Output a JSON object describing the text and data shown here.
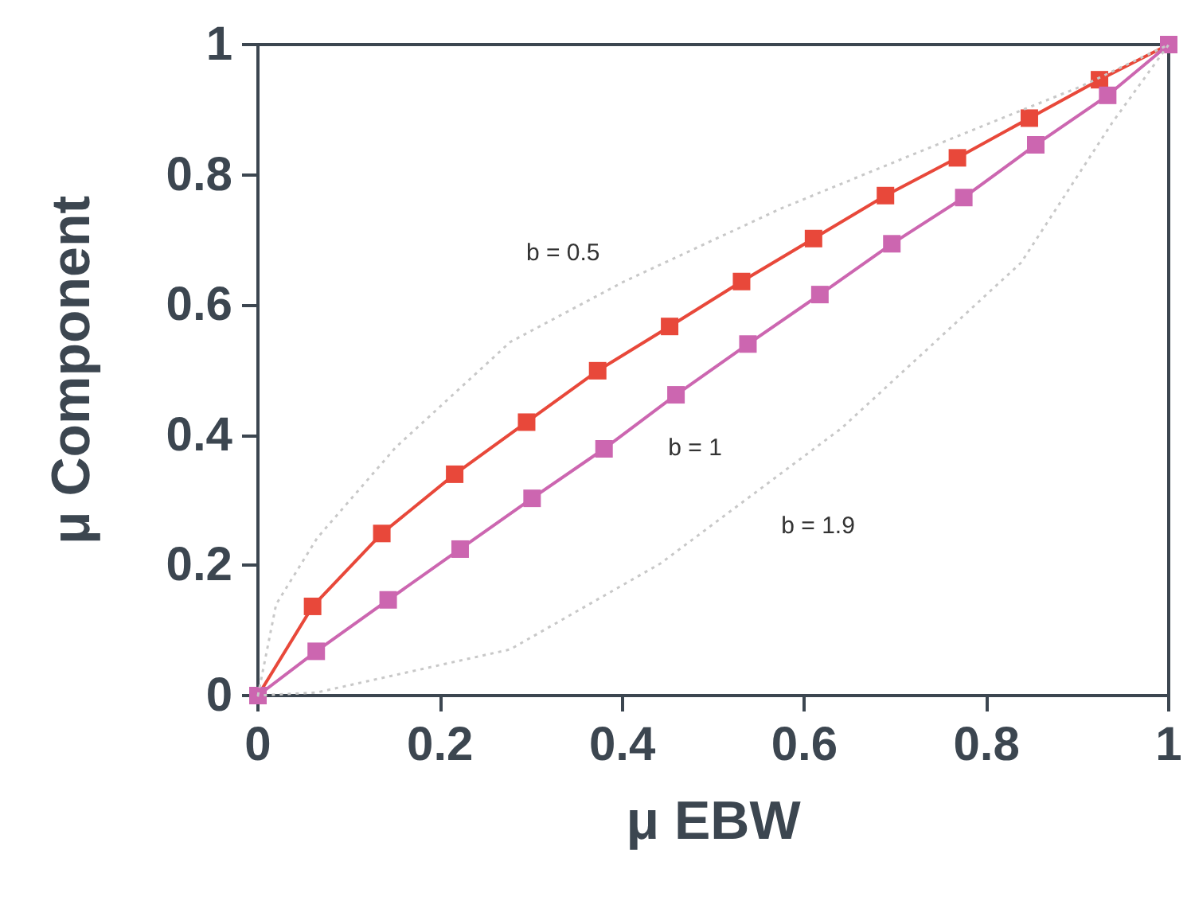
{
  "chart_data": {
    "type": "line",
    "xlabel": "μ EBW",
    "ylabel": "μ Component",
    "xlim": [
      0,
      1
    ],
    "ylim": [
      0,
      1
    ],
    "xticks": [
      0,
      0.2,
      0.4,
      0.6,
      0.8,
      1
    ],
    "yticks": [
      0,
      0.2,
      0.4,
      0.6,
      0.8,
      1
    ],
    "grid": false,
    "series": [
      {
        "color": "#e8483a",
        "marker": "square",
        "line_style": "solid",
        "x": [
          0,
          0.06,
          0.136,
          0.216,
          0.295,
          0.373,
          0.452,
          0.531,
          0.61,
          0.689,
          0.768,
          0.847,
          0.924,
          1
        ],
        "values": [
          0,
          0.137,
          0.249,
          0.34,
          0.42,
          0.499,
          0.567,
          0.636,
          0.702,
          0.768,
          0.826,
          0.887,
          0.946,
          1
        ]
      },
      {
        "color": "#cc66b0",
        "marker": "square",
        "line_style": "solid",
        "x": [
          0,
          0.064,
          0.143,
          0.222,
          0.301,
          0.38,
          0.459,
          0.538,
          0.617,
          0.696,
          0.775,
          0.854,
          0.933,
          1
        ],
        "values": [
          0,
          0.068,
          0.147,
          0.225,
          0.303,
          0.379,
          0.462,
          0.54,
          0.616,
          0.694,
          0.765,
          0.846,
          0.922,
          1
        ]
      }
    ],
    "annotations": [
      "b = 0.5",
      "b = 1",
      "b = 1.9"
    ]
  }
}
